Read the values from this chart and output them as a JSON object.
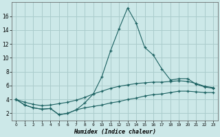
{
  "xlabel": "Humidex (Indice chaleur)",
  "bg_color": "#cce8e8",
  "grid_color": "#aacccc",
  "line_color": "#1a6060",
  "xlim": [
    -0.5,
    23.5
  ],
  "ylim": [
    1.0,
    18.0
  ],
  "yticks": [
    2,
    4,
    6,
    8,
    10,
    12,
    14,
    16
  ],
  "xticks": [
    0,
    1,
    2,
    3,
    4,
    5,
    6,
    7,
    8,
    9,
    10,
    11,
    12,
    13,
    14,
    15,
    16,
    17,
    18,
    19,
    20,
    21,
    22,
    23
  ],
  "curve1_x": [
    0,
    1,
    2,
    3,
    4,
    5,
    6,
    7,
    8,
    9,
    10,
    11,
    12,
    13,
    14,
    15,
    16,
    17,
    18,
    19,
    20,
    21,
    22,
    23
  ],
  "curve1_y": [
    4.0,
    3.2,
    2.8,
    2.6,
    2.7,
    1.8,
    2.0,
    2.5,
    3.5,
    4.8,
    7.3,
    11.0,
    14.2,
    17.2,
    15.0,
    11.5,
    10.4,
    8.4,
    6.8,
    7.0,
    7.0,
    6.2,
    5.8,
    5.6
  ],
  "curve2_x": [
    0,
    1,
    2,
    3,
    4,
    5,
    6,
    7,
    8,
    9,
    10,
    11,
    12,
    13,
    14,
    15,
    16,
    17,
    18,
    19,
    20,
    21,
    22,
    23
  ],
  "curve2_y": [
    4.0,
    3.6,
    3.3,
    3.1,
    3.2,
    3.4,
    3.6,
    3.9,
    4.3,
    4.8,
    5.2,
    5.6,
    5.9,
    6.1,
    6.3,
    6.4,
    6.5,
    6.5,
    6.6,
    6.7,
    6.6,
    6.3,
    5.9,
    5.7
  ],
  "curve3_x": [
    0,
    1,
    2,
    3,
    4,
    5,
    6,
    7,
    8,
    9,
    10,
    11,
    12,
    13,
    14,
    15,
    16,
    17,
    18,
    19,
    20,
    21,
    22,
    23
  ],
  "curve3_y": [
    4.0,
    3.2,
    2.8,
    2.6,
    2.7,
    1.8,
    2.0,
    2.5,
    2.8,
    3.0,
    3.2,
    3.5,
    3.7,
    4.0,
    4.2,
    4.5,
    4.7,
    4.8,
    5.0,
    5.2,
    5.2,
    5.1,
    5.0,
    5.0
  ]
}
